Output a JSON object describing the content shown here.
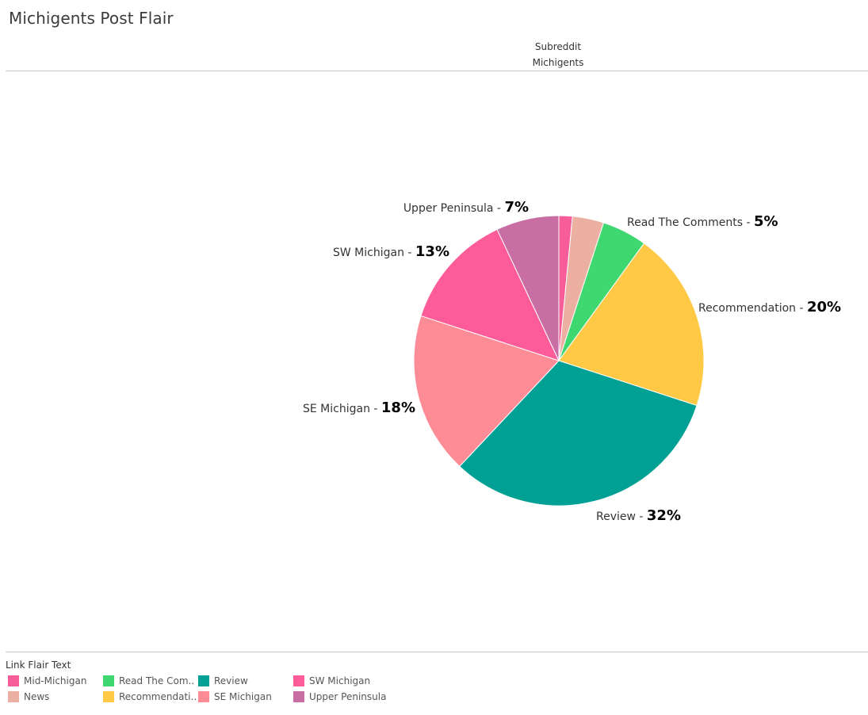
{
  "title": "Michigents Post Flair",
  "column_header": {
    "field": "Subreddit",
    "value": "Michigents"
  },
  "legend": {
    "title": "Link Flair Text",
    "items": [
      {
        "label": "Mid-Michigan",
        "color": "#f75d98"
      },
      {
        "label": "News",
        "color": "#ebb0a2"
      },
      {
        "label": "Read The Com..",
        "color": "#3fd770"
      },
      {
        "label": "Recommendati..",
        "color": "#ffc946"
      },
      {
        "label": "Review",
        "color": "#00a194"
      },
      {
        "label": "SE Michigan",
        "color": "#fd8c97"
      },
      {
        "label": "SW Michigan",
        "color": "#fd5c98"
      },
      {
        "label": "Upper Peninsula",
        "color": "#c96ea3"
      }
    ]
  },
  "chart_data": {
    "type": "pie",
    "title": "Michigents Post Flair",
    "slices": [
      {
        "name": "Mid-Michigan",
        "value": 1.5,
        "color": "#f75d98",
        "label": ""
      },
      {
        "name": "News",
        "value": 3.5,
        "color": "#ebb0a2",
        "label": ""
      },
      {
        "name": "Read The Comments",
        "value": 5,
        "color": "#3fd770",
        "label": "5%"
      },
      {
        "name": "Recommendation",
        "value": 20,
        "color": "#ffc946",
        "label": "20%"
      },
      {
        "name": "Review",
        "value": 32,
        "color": "#00a194",
        "label": "32%"
      },
      {
        "name": "SE Michigan",
        "value": 18,
        "color": "#fd8c97",
        "label": "18%"
      },
      {
        "name": "SW Michigan",
        "value": 13,
        "color": "#fd5c98",
        "label": "13%"
      },
      {
        "name": "Upper Peninsula",
        "value": 7,
        "color": "#c96ea3",
        "label": "7%"
      }
    ],
    "legend_position": "bottom-left"
  }
}
